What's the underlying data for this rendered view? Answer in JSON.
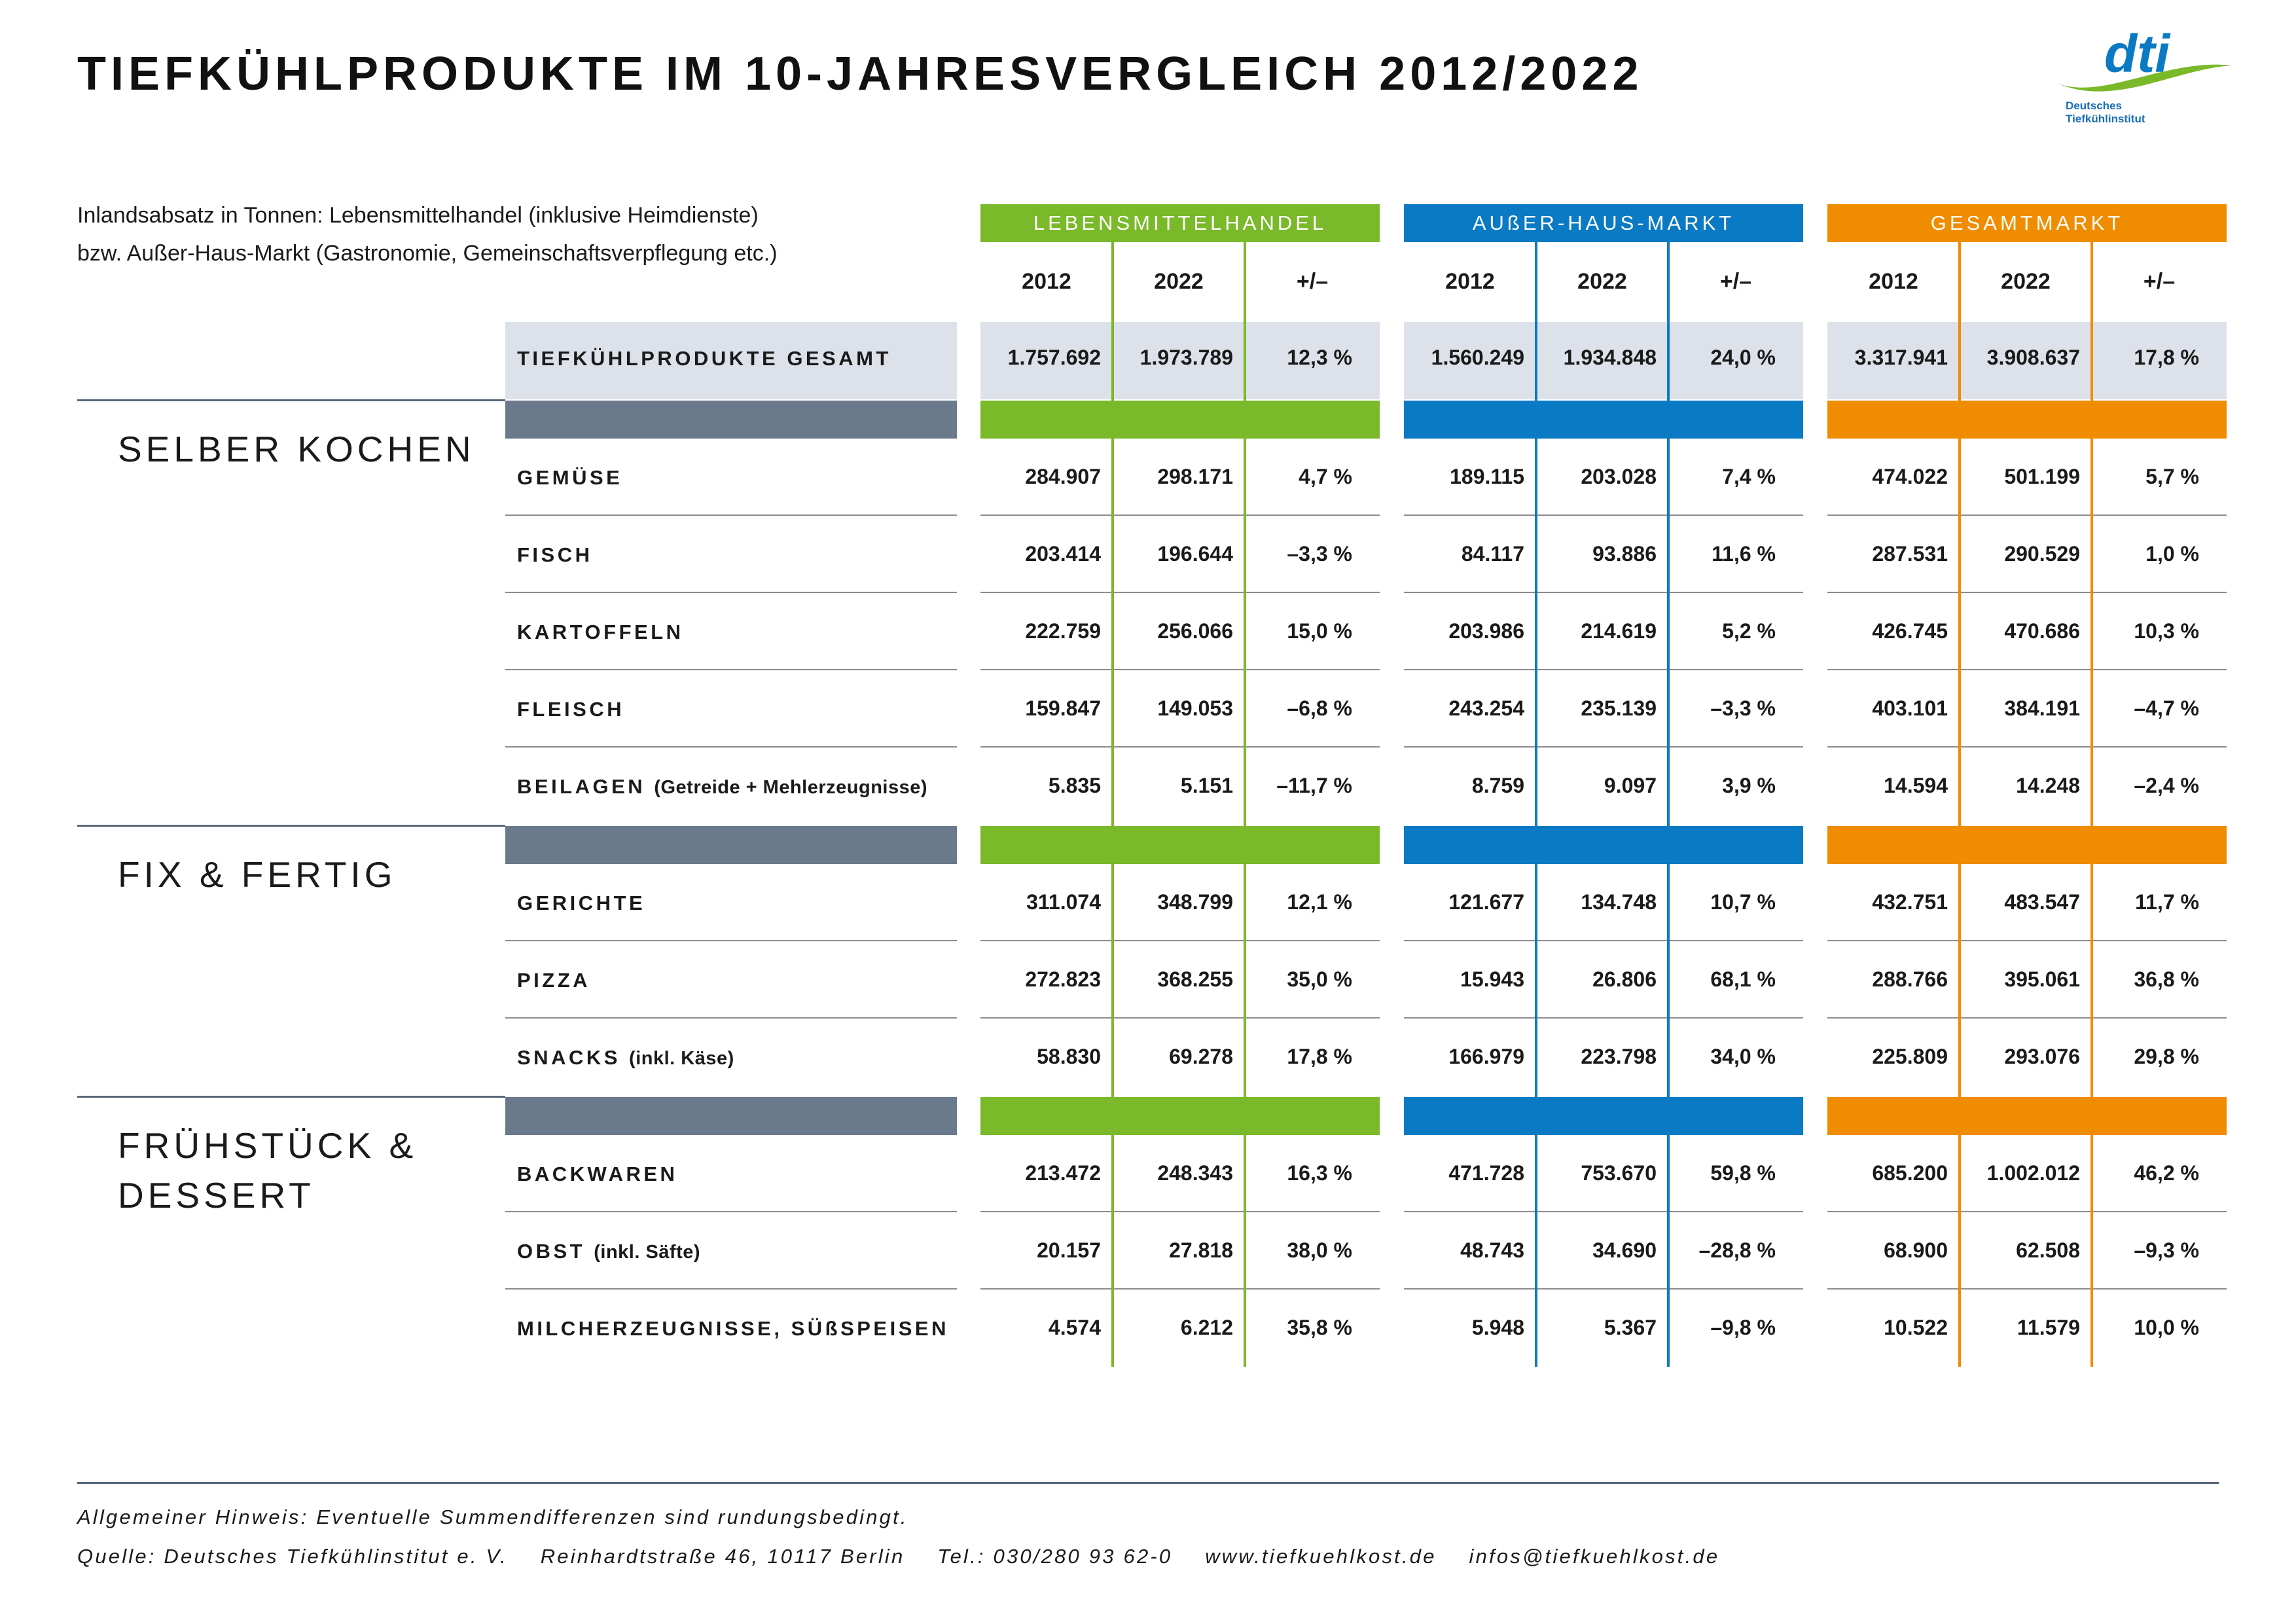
{
  "title": "TIEFKÜHLPRODUKTE IM 10-JAHRESVERGLEICH 2012/2022",
  "logo": {
    "text": "dti",
    "subtitle_line1": "Deutsches",
    "subtitle_line2": "Tiefkühlinstitut"
  },
  "intro": {
    "line1": "Inlandsabsatz in Tonnen: Lebensmittelhandel (inklusive Heimdienste)",
    "line2": "bzw. Außer-Haus-Markt (Gastronomie, Gemeinschaftsverpflegung etc.)"
  },
  "colors": {
    "green": "#7ab929",
    "blue": "#0a7ac4",
    "orange": "#f08c00",
    "slate": "#6a7a8c",
    "total_bg": "#dde1e9"
  },
  "groups": [
    {
      "name": "LEBENSMITTELHANDEL",
      "color": "#7ab929",
      "cols": [
        "2012",
        "2022",
        "+/–"
      ]
    },
    {
      "name": "AUßER-HAUS-MARKT",
      "color": "#0a7ac4",
      "cols": [
        "2012",
        "2022",
        "+/–"
      ]
    },
    {
      "name": "GESAMTMARKT",
      "color": "#f08c00",
      "cols": [
        "2012",
        "2022",
        "+/–"
      ]
    }
  ],
  "total_row": {
    "label": "TIEFKÜHLPRODUKTE GESAMT",
    "values": [
      "1.757.692",
      "1.973.789",
      "12,3 %",
      "1.560.249",
      "1.934.848",
      "24,0 %",
      "3.317.941",
      "3.908.637",
      "17,8 %"
    ]
  },
  "sections": [
    {
      "title_line1": "SELBER KOCHEN",
      "title_line2": "",
      "rows": [
        {
          "label": "GEMÜSE",
          "note": "",
          "values": [
            "284.907",
            "298.171",
            "4,7 %",
            "189.115",
            "203.028",
            "7,4 %",
            "474.022",
            "501.199",
            "5,7 %"
          ]
        },
        {
          "label": "FISCH",
          "note": "",
          "values": [
            "203.414",
            "196.644",
            "–3,3 %",
            "84.117",
            "93.886",
            "11,6 %",
            "287.531",
            "290.529",
            "1,0 %"
          ]
        },
        {
          "label": "KARTOFFELN",
          "note": "",
          "values": [
            "222.759",
            "256.066",
            "15,0 %",
            "203.986",
            "214.619",
            "5,2 %",
            "426.745",
            "470.686",
            "10,3 %"
          ]
        },
        {
          "label": "FLEISCH",
          "note": "",
          "values": [
            "159.847",
            "149.053",
            "–6,8 %",
            "243.254",
            "235.139",
            "–3,3 %",
            "403.101",
            "384.191",
            "–4,7 %"
          ]
        },
        {
          "label": "BEILAGEN",
          "note": "(Getreide + Mehlerzeugnisse)",
          "values": [
            "5.835",
            "5.151",
            "–11,7 %",
            "8.759",
            "9.097",
            "3,9 %",
            "14.594",
            "14.248",
            "–2,4 %"
          ]
        }
      ]
    },
    {
      "title_line1": "FIX & FERTIG",
      "title_line2": "",
      "rows": [
        {
          "label": "GERICHTE",
          "note": "",
          "values": [
            "311.074",
            "348.799",
            "12,1 %",
            "121.677",
            "134.748",
            "10,7 %",
            "432.751",
            "483.547",
            "11,7 %"
          ]
        },
        {
          "label": "PIZZA",
          "note": "",
          "values": [
            "272.823",
            "368.255",
            "35,0 %",
            "15.943",
            "26.806",
            "68,1 %",
            "288.766",
            "395.061",
            "36,8 %"
          ]
        },
        {
          "label": "SNACKS",
          "note": "(inkl. Käse)",
          "values": [
            "58.830",
            "69.278",
            "17,8 %",
            "166.979",
            "223.798",
            "34,0 %",
            "225.809",
            "293.076",
            "29,8 %"
          ]
        }
      ]
    },
    {
      "title_line1": "FRÜHSTÜCK &",
      "title_line2": "DESSERT",
      "rows": [
        {
          "label": "BACKWAREN",
          "note": "",
          "values": [
            "213.472",
            "248.343",
            "16,3 %",
            "471.728",
            "753.670",
            "59,8 %",
            "685.200",
            "1.002.012",
            "46,2 %"
          ]
        },
        {
          "label": "OBST",
          "note": "(inkl. Säfte)",
          "values": [
            "20.157",
            "27.818",
            "38,0 %",
            "48.743",
            "34.690",
            "–28,8 %",
            "68.900",
            "62.508",
            "–9,3 %"
          ]
        },
        {
          "label": "MILCHERZEUGNISSE, SÜßSPEISEN",
          "note": "",
          "values": [
            "4.574",
            "6.212",
            "35,8 %",
            "5.948",
            "5.367",
            "–9,8 %",
            "10.522",
            "11.579",
            "10,0 %"
          ]
        }
      ]
    }
  ],
  "footer": {
    "hint": "Allgemeiner Hinweis: Eventuelle Summendifferenzen sind rundungsbedingt.",
    "source": "Quelle: Deutsches Tiefkühlinstitut e. V.",
    "address": "Reinhardtstraße 46, 10117 Berlin",
    "phone": "Tel.: 030/280 93 62-0",
    "website": "www.tiefkuehlkost.de",
    "email": "infos@tiefkuehlkost.de"
  }
}
